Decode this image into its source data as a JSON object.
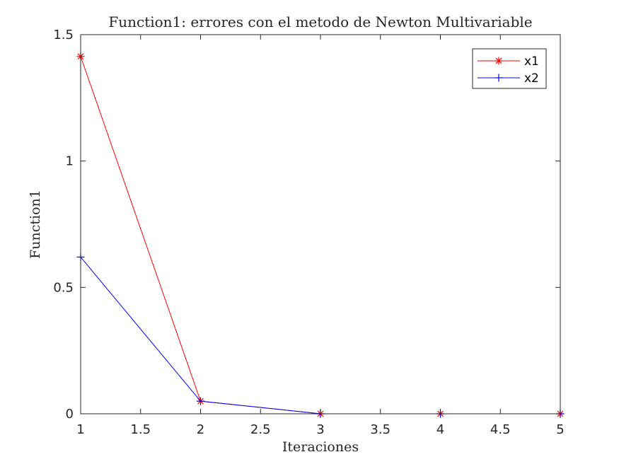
{
  "chart_data": {
    "type": "line",
    "title": "Function1: errores con el metodo de Newton Multivariable",
    "xlabel": "Iteraciones",
    "ylabel": "Function1",
    "xlim": [
      1,
      5
    ],
    "ylim": [
      0,
      1.5
    ],
    "xticks": [
      "1",
      "1.5",
      "2",
      "2.5",
      "3",
      "3.5",
      "4",
      "4.5",
      "5"
    ],
    "yticks": [
      "0",
      "0.5",
      "1",
      "1.5"
    ],
    "grid": false,
    "legend_position": "top-right",
    "x": [
      1,
      2,
      3,
      4,
      5
    ],
    "series": [
      {
        "name": "x1",
        "color": "#ff0000",
        "marker": "asterisk",
        "values": [
          1.414,
          0.05,
          0.0,
          0.0,
          0.0
        ]
      },
      {
        "name": "x2",
        "color": "#0000ff",
        "marker": "plus",
        "values": [
          0.62,
          0.05,
          0.0,
          0.0,
          0.0
        ]
      }
    ]
  }
}
